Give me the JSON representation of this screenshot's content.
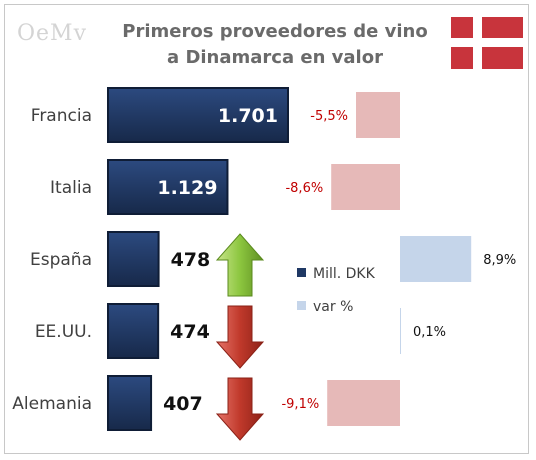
{
  "logo_text": "OeMv",
  "title_line1": "Primeros proveedores de vino",
  "title_line2": "a Dinamarca en valor",
  "flag": {
    "name": "denmark-flag",
    "red": "#c8343c",
    "white": "#ffffff"
  },
  "colors": {
    "bar": "#1f3864",
    "var_negative": "#e6b9b8",
    "var_positive": "#c5d5ea",
    "pct_negative_text": "#c00000",
    "pct_positive_text": "#111111",
    "arrow_up": "#8cc63f",
    "arrow_down": "#c0392b"
  },
  "chart_data": {
    "type": "bar",
    "orientation": "horizontal",
    "categories": [
      "Francia",
      "Italia",
      "España",
      "EE.UU.",
      "Alemania"
    ],
    "series": [
      {
        "name": "Mill. DKK",
        "values": [
          1701,
          1129,
          478,
          474,
          407
        ],
        "labels": [
          "1.701",
          "1.129",
          "478",
          "474",
          "407"
        ]
      },
      {
        "name": "var %",
        "values": [
          -5.5,
          -8.6,
          8.9,
          0.1,
          -9.1
        ],
        "labels": [
          "-5,5%",
          "-8,6%",
          "8,9%",
          "0,1%",
          "-9,1%"
        ]
      }
    ],
    "trend_arrows": [
      null,
      null,
      "up",
      "down",
      "down"
    ],
    "legend": [
      "Mill. DKK",
      "var %"
    ],
    "legend_position": "center-right",
    "grid": false
  }
}
